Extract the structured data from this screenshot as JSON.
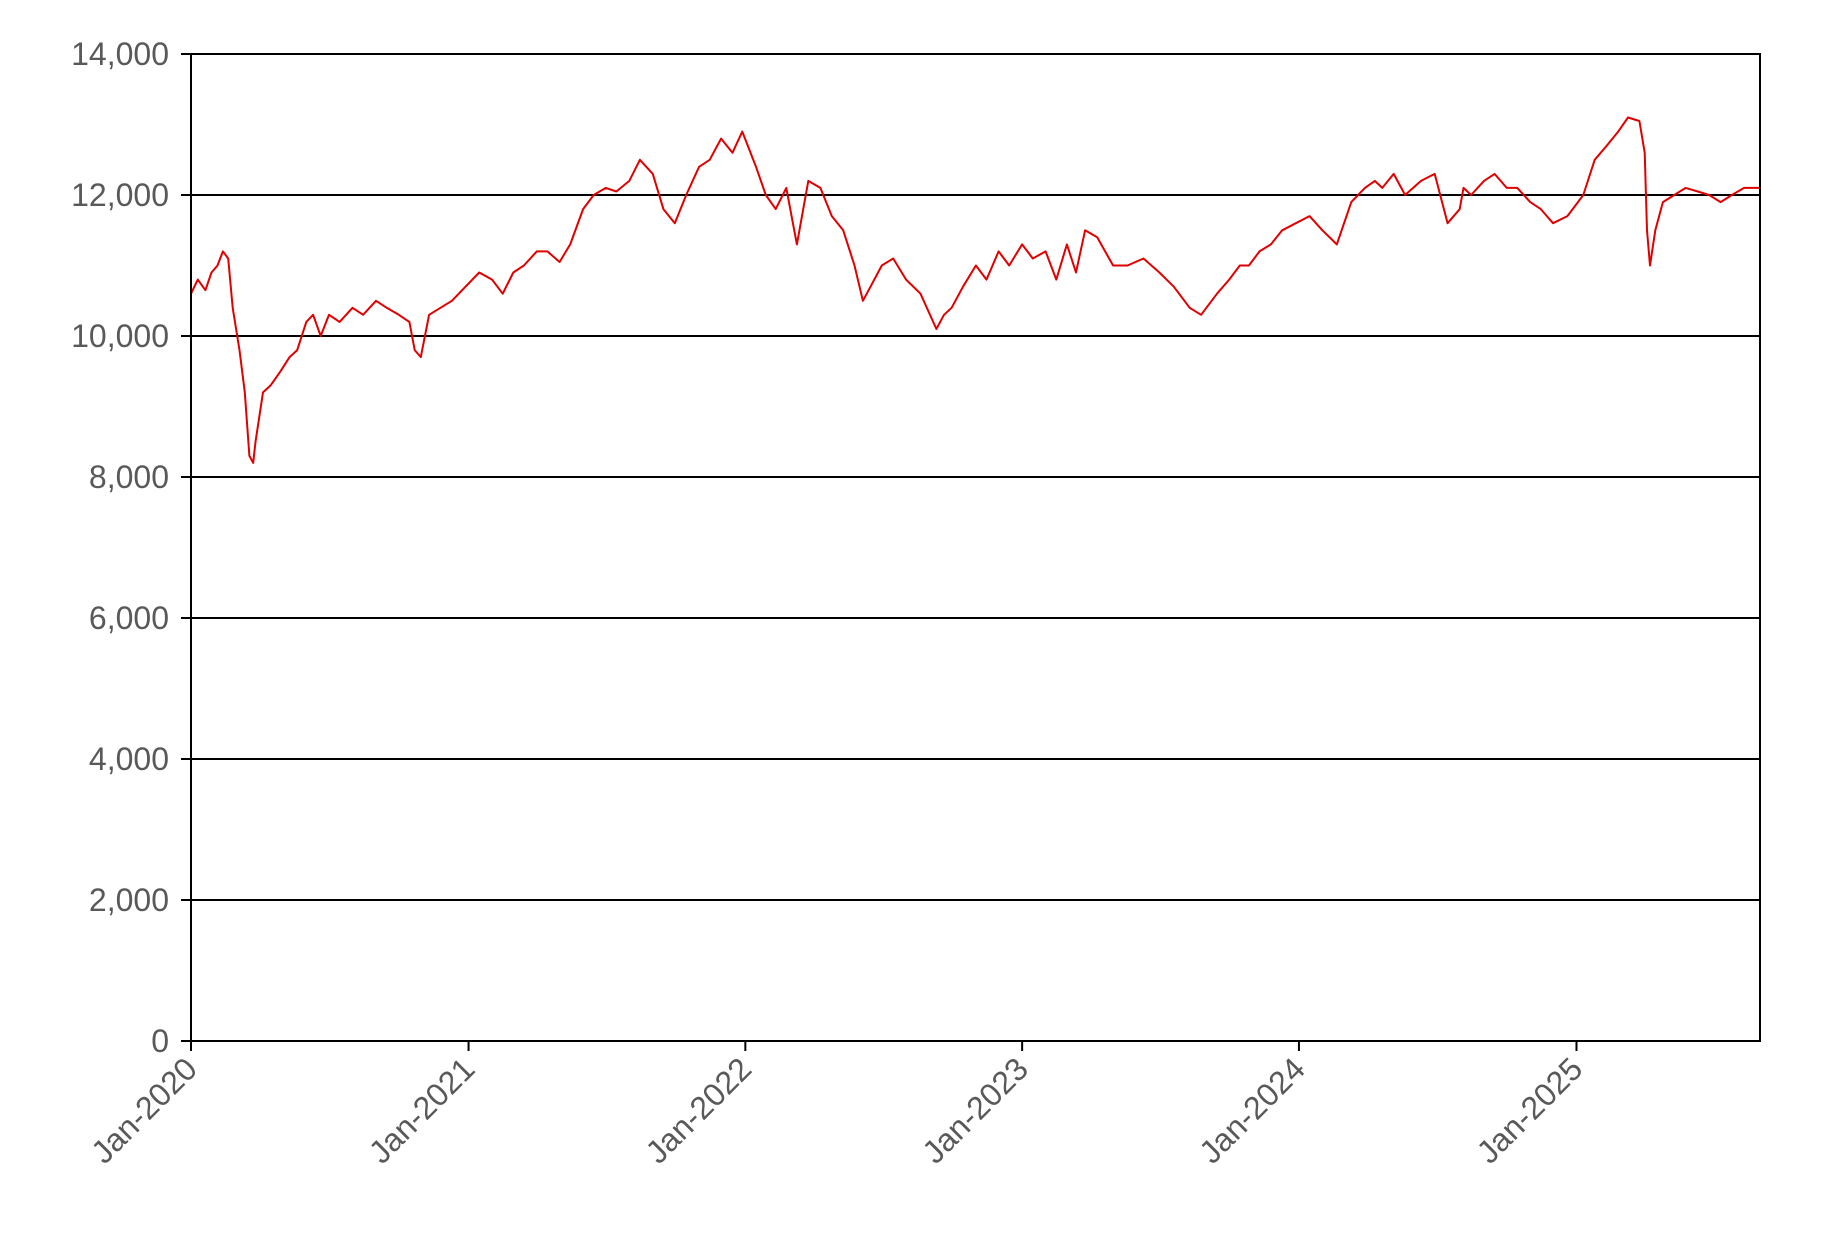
{
  "chart_data": {
    "type": "line",
    "title": "",
    "xlabel": "",
    "ylabel": "",
    "ylim": [
      0,
      14000
    ],
    "xlim": [
      "2020-01-01",
      "2025-08-31"
    ],
    "grid": true,
    "legend": "none",
    "line_color": "#e00000",
    "y_ticks": [
      {
        "value": 0,
        "label": "0"
      },
      {
        "value": 2000,
        "label": "2,000"
      },
      {
        "value": 4000,
        "label": "4,000"
      },
      {
        "value": 6000,
        "label": "6,000"
      },
      {
        "value": 8000,
        "label": "8,000"
      },
      {
        "value": 10000,
        "label": "10,000"
      },
      {
        "value": 12000,
        "label": "12,000"
      },
      {
        "value": 14000,
        "label": "14,000"
      }
    ],
    "x_ticks": [
      {
        "value": "2020-01-01",
        "label": "Jan-2020"
      },
      {
        "value": "2021-01-01",
        "label": "Jan-2021"
      },
      {
        "value": "2022-01-01",
        "label": "Jan-2022"
      },
      {
        "value": "2023-01-01",
        "label": "Jan-2023"
      },
      {
        "value": "2024-01-01",
        "label": "Jan-2024"
      },
      {
        "value": "2025-01-01",
        "label": "Jan-2025"
      }
    ],
    "series": [
      {
        "x": [
          "2020-01-01",
          "2020-01-10",
          "2020-01-20",
          "2020-01-28",
          "2020-02-05",
          "2020-02-12",
          "2020-02-19",
          "2020-02-25",
          "2020-03-05",
          "2020-03-12",
          "2020-03-18",
          "2020-03-23",
          "2020-03-26",
          "2020-04-05",
          "2020-04-15",
          "2020-04-28",
          "2020-05-10",
          "2020-05-20",
          "2020-06-01",
          "2020-06-10",
          "2020-06-20",
          "2020-07-01",
          "2020-07-15",
          "2020-08-01",
          "2020-08-15",
          "2020-09-01",
          "2020-09-15",
          "2020-10-01",
          "2020-10-15",
          "2020-10-22",
          "2020-10-30",
          "2020-11-10",
          "2020-11-25",
          "2020-12-10",
          "2020-12-28",
          "2021-01-15",
          "2021-02-01",
          "2021-02-15",
          "2021-03-01",
          "2021-03-15",
          "2021-04-01",
          "2021-04-15",
          "2021-05-01",
          "2021-05-15",
          "2021-06-01",
          "2021-06-15",
          "2021-07-01",
          "2021-07-15",
          "2021-08-01",
          "2021-08-15",
          "2021-09-01",
          "2021-09-15",
          "2021-09-30",
          "2021-10-15",
          "2021-11-01",
          "2021-11-15",
          "2021-11-30",
          "2021-12-15",
          "2021-12-28",
          "2022-01-15",
          "2022-01-28",
          "2022-02-10",
          "2022-02-24",
          "2022-03-10",
          "2022-03-25",
          "2022-04-10",
          "2022-04-25",
          "2022-05-10",
          "2022-05-25",
          "2022-06-05",
          "2022-06-15",
          "2022-06-30",
          "2022-07-15",
          "2022-08-01",
          "2022-08-20",
          "2022-09-10",
          "2022-09-20",
          "2022-09-30",
          "2022-10-15",
          "2022-11-01",
          "2022-11-15",
          "2022-12-01",
          "2022-12-15",
          "2023-01-01",
          "2023-01-15",
          "2023-02-01",
          "2023-02-15",
          "2023-03-01",
          "2023-03-13",
          "2023-03-25",
          "2023-04-10",
          "2023-05-01",
          "2023-05-20",
          "2023-06-10",
          "2023-07-01",
          "2023-07-20",
          "2023-08-10",
          "2023-08-25",
          "2023-09-15",
          "2023-10-01",
          "2023-10-15",
          "2023-10-27",
          "2023-11-10",
          "2023-11-25",
          "2023-12-10",
          "2023-12-28",
          "2024-01-15",
          "2024-02-01",
          "2024-02-20",
          "2024-03-10",
          "2024-03-28",
          "2024-04-10",
          "2024-04-20",
          "2024-05-05",
          "2024-05-20",
          "2024-06-10",
          "2024-06-28",
          "2024-07-15",
          "2024-07-31",
          "2024-08-05",
          "2024-08-15",
          "2024-09-01",
          "2024-09-15",
          "2024-10-01",
          "2024-10-15",
          "2024-11-01",
          "2024-11-15",
          "2024-12-01",
          "2024-12-20",
          "2025-01-10",
          "2025-01-25",
          "2025-02-10",
          "2025-02-25",
          "2025-03-10",
          "2025-03-25",
          "2025-04-01",
          "2025-04-04",
          "2025-04-08",
          "2025-04-15",
          "2025-04-25",
          "2025-05-10",
          "2025-05-25",
          "2025-06-10",
          "2025-06-25",
          "2025-07-10",
          "2025-07-25",
          "2025-08-10",
          "2025-08-31"
        ],
        "y": [
          10600,
          10800,
          10650,
          10900,
          11000,
          11200,
          11100,
          10400,
          9800,
          9200,
          8300,
          8200,
          8500,
          9200,
          9300,
          9500,
          9700,
          9800,
          10200,
          10300,
          10000,
          10300,
          10200,
          10400,
          10300,
          10500,
          10400,
          10300,
          10200,
          9800,
          9700,
          10300,
          10400,
          10500,
          10700,
          10900,
          10800,
          10600,
          10900,
          11000,
          11200,
          11200,
          11050,
          11300,
          11800,
          12000,
          12100,
          12050,
          12200,
          12500,
          12300,
          11800,
          11600,
          12000,
          12400,
          12500,
          12800,
          12600,
          12900,
          12400,
          12000,
          11800,
          12100,
          11300,
          12200,
          12100,
          11700,
          11500,
          11000,
          10500,
          10700,
          11000,
          11100,
          10800,
          10600,
          10100,
          10300,
          10400,
          10700,
          11000,
          10800,
          11200,
          11000,
          11300,
          11100,
          11200,
          10800,
          11300,
          10900,
          11500,
          11400,
          11000,
          11000,
          11100,
          10900,
          10700,
          10400,
          10300,
          10600,
          10800,
          11000,
          11000,
          11200,
          11300,
          11500,
          11600,
          11700,
          11500,
          11300,
          11900,
          12100,
          12200,
          12100,
          12300,
          12000,
          12200,
          12300,
          11600,
          11800,
          12100,
          12000,
          12200,
          12300,
          12100,
          12100,
          11900,
          11800,
          11600,
          11700,
          12000,
          12500,
          12700,
          12900,
          13100,
          13050,
          12600,
          11500,
          11000,
          11500,
          11900,
          12000,
          12100,
          12050,
          12000,
          11900,
          12000,
          12100,
          12100
        ]
      }
    ]
  }
}
